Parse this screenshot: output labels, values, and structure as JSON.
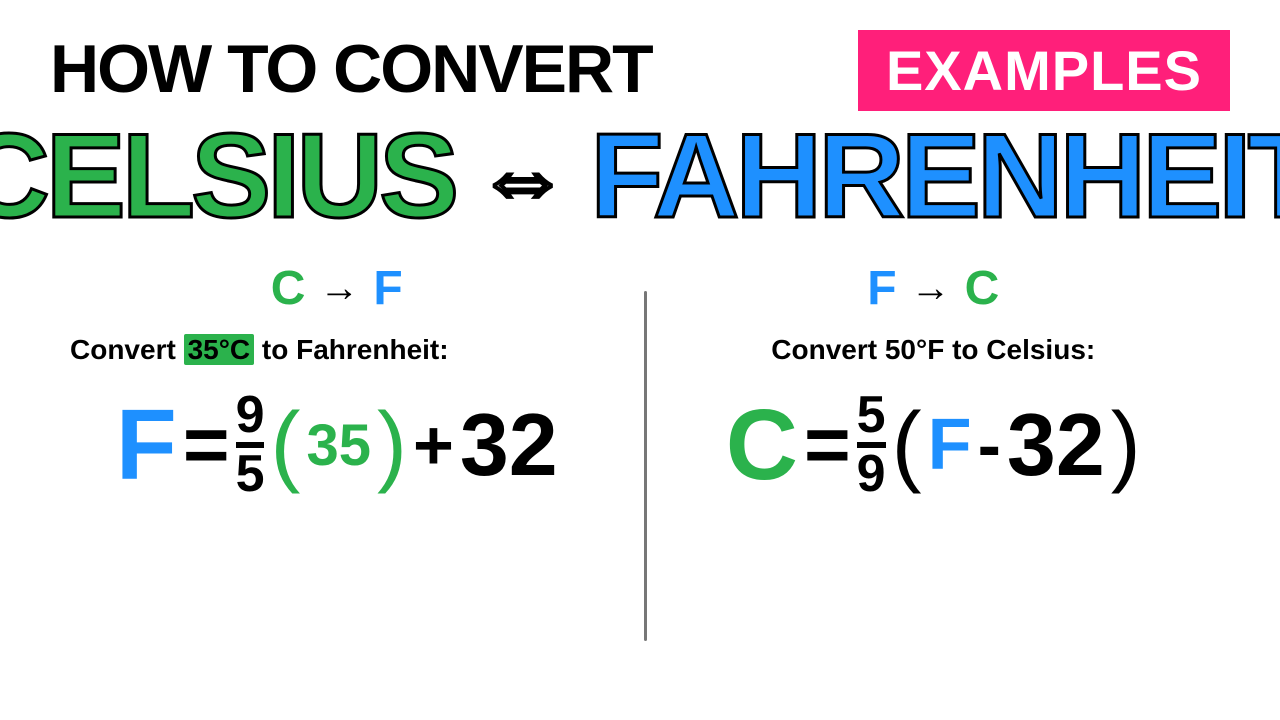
{
  "colors": {
    "green": "#2bb24c",
    "blue": "#1e90ff",
    "pink": "#ff1f7a",
    "black": "#000000",
    "white": "#ffffff"
  },
  "header": {
    "howto": "HOW TO CONVERT",
    "examples": "EXAMPLES"
  },
  "title": {
    "celsius": "CELSIUS",
    "arrow": "⇔",
    "fahrenheit": "FAHRENHEIT"
  },
  "left": {
    "sub_c": "C",
    "sub_arrow": "→",
    "sub_f": "F",
    "prompt_pre": "Convert ",
    "prompt_hl": "35°C",
    "prompt_post": " to Fahrenheit:",
    "formula": {
      "var": "F",
      "eq": "=",
      "num": "9",
      "den": "5",
      "lparen": "(",
      "inner": "35",
      "rparen": ")",
      "plus": "+",
      "const": "32"
    }
  },
  "right": {
    "sub_f": "F",
    "sub_arrow": "→",
    "sub_c": "C",
    "prompt": "Convert 50°F to Celsius:",
    "formula": {
      "var": "C",
      "eq": "=",
      "num": "5",
      "den": "9",
      "lparen": "(",
      "inner": "F",
      "minus": "-",
      "const": "32",
      "rparen": ")"
    }
  }
}
